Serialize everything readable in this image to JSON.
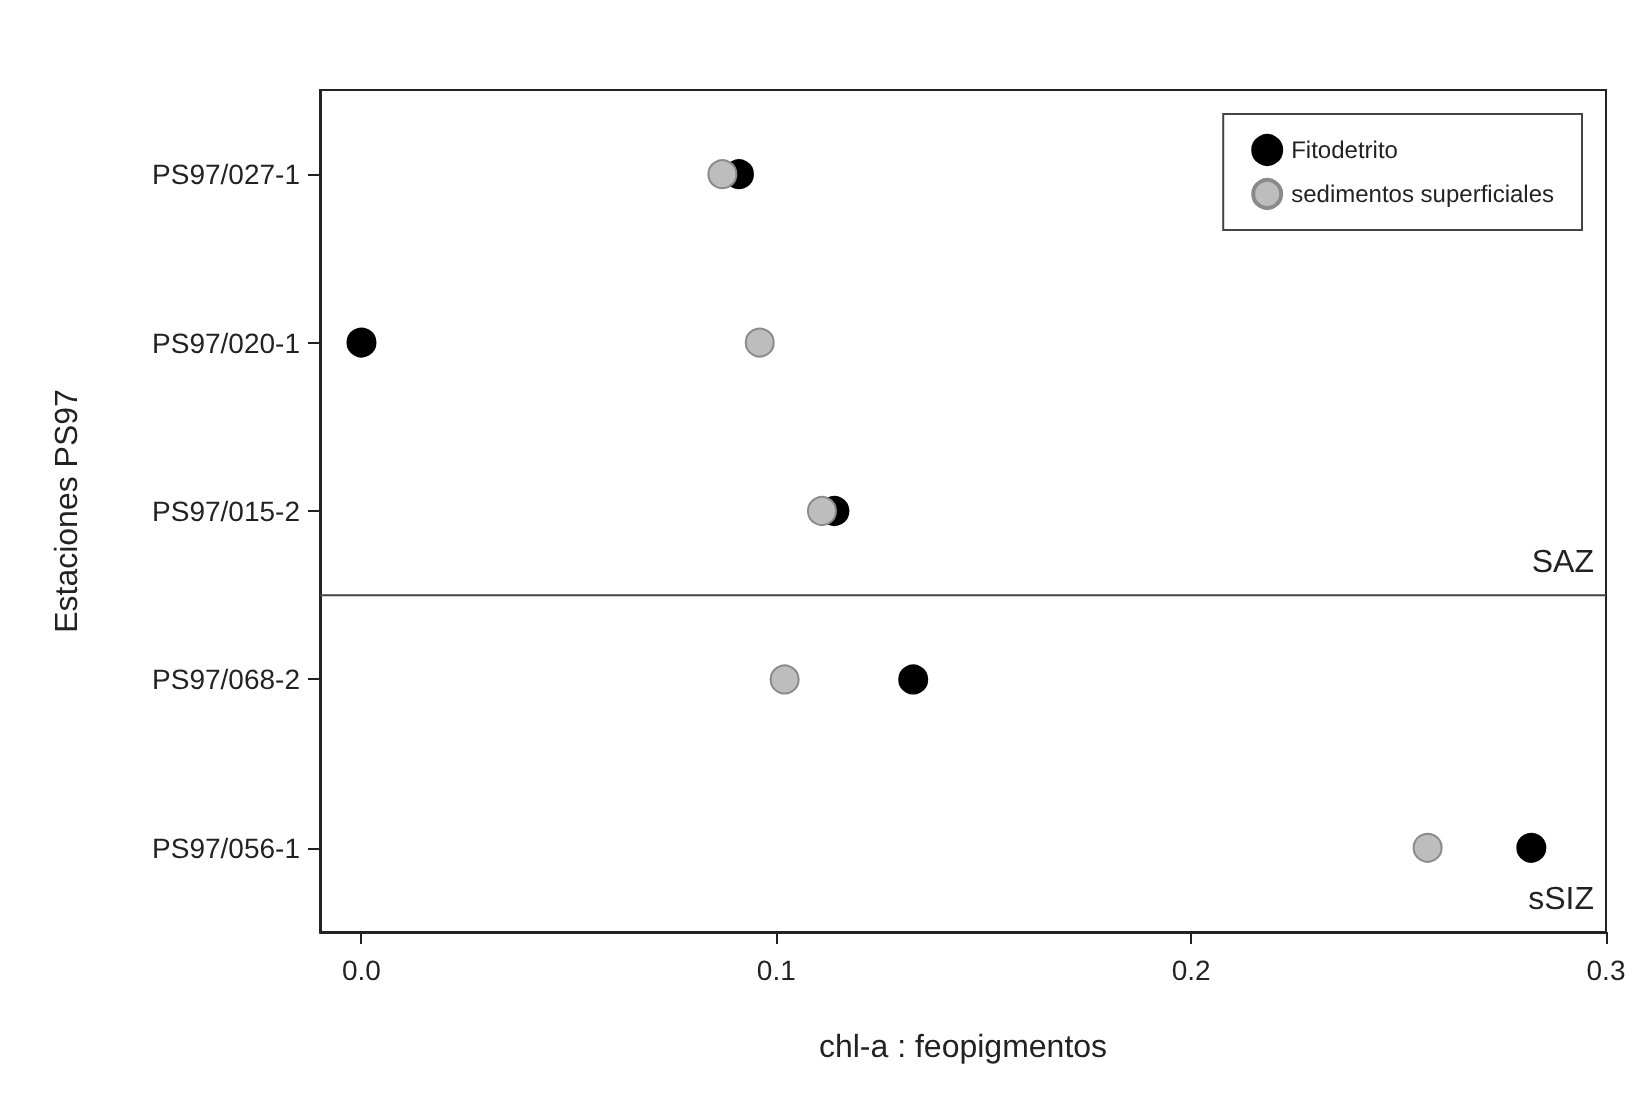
{
  "chart_data": {
    "type": "scatter",
    "xlabel": "chl-a : feopigmentos",
    "ylabel": "Estaciones PS97",
    "categories": [
      "PS97/027-1",
      "PS97/020-1",
      "PS97/015-2",
      "PS97/068-2",
      "PS97/056-1"
    ],
    "orientation": "horizontal",
    "series": [
      {
        "name": "Fitodetrito",
        "color": "#000000",
        "values": [
          0.091,
          0,
          0.114,
          0.133,
          0.282
        ]
      },
      {
        "name": "sedimentos superficiales",
        "color": "#bdbdbd",
        "values": [
          0.087,
          0.096,
          0.111,
          0.102,
          0.257
        ]
      }
    ],
    "xlim": [
      -0.01,
      0.3
    ],
    "xticks": [
      {
        "value": 0,
        "label": "0.0"
      },
      {
        "value": 0.1,
        "label": "0.1"
      },
      {
        "value": 0.2,
        "label": "0.2"
      },
      {
        "value": 0.3,
        "label": "0.3"
      }
    ],
    "annotations": [
      "SAZ",
      "sSIZ"
    ],
    "marker": "circle",
    "legend": "top right"
  }
}
